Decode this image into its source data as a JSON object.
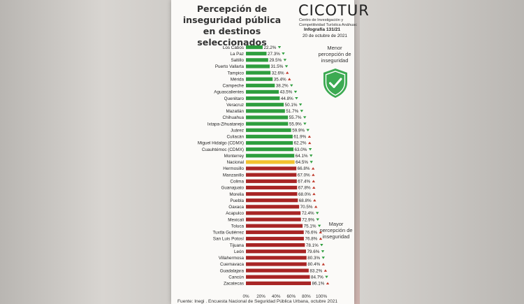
{
  "title": "Percepción de inseguridad pública en destinos seleccionados",
  "brand": {
    "name": "CICOTUR",
    "subtitle": "Centro de Investigación y Competitividad Turística Anáhuac"
  },
  "info": {
    "id": "Infografía 131/21",
    "date": "20 de octubre de 2021"
  },
  "notes": {
    "low": "Menor percepción de inseguridad",
    "high": "Mayor percepción de inseguridad"
  },
  "source": "Fuente: Inegi . Encuesta Nacional de Seguridad Pública Urbana, octubre 2021",
  "colors": {
    "green": "#2e9e3e",
    "yellow": "#f2c12e",
    "red": "#a82525",
    "shield": "#3caa52",
    "up_marker": "#c0392b",
    "down_marker": "#2e9e3e"
  },
  "chart_data": {
    "type": "bar",
    "orientation": "horizontal",
    "xlim": [
      0,
      100
    ],
    "x_ticks": [
      "0%",
      "20%",
      "40%",
      "60%",
      "80%",
      "100%"
    ],
    "categories": [
      "Los Cabos",
      "La Paz",
      "Saltillo",
      "Puerto Vallarta",
      "Tampico",
      "Mérida",
      "Campeche",
      "Aguascalientes",
      "Querétaro",
      "Veracruz",
      "Mazatlán",
      "Chihuahua",
      "Ixtapa-Zihuatanejo",
      "Juárez",
      "Culiacán",
      "Miguel Hidalgo (CDMX)",
      "Cuauhtémoc (CDMX)",
      "Monterrey",
      "Nacional",
      "Hermosillo",
      "Manzanillo",
      "Colima",
      "Guanajuato",
      "Morelia",
      "Puebla",
      "Oaxaca",
      "Acapulco",
      "Mexicali",
      "Toluca",
      "Tuxtla Gutiérrez",
      "San Luis Potosí",
      "Tijuana",
      "León",
      "Villahermosa",
      "Cuernavaca",
      "Guadalajara",
      "Cancún",
      "Zacatecas"
    ],
    "values": [
      22.2,
      27.3,
      29.5,
      31.5,
      32.6,
      35.4,
      38.2,
      43.5,
      44.8,
      50.1,
      51.7,
      55.7,
      55.9,
      59.9,
      61.9,
      62.2,
      63.0,
      64.1,
      64.5,
      66.8,
      67.0,
      67.4,
      67.8,
      68.0,
      68.8,
      70.5,
      72.4,
      72.9,
      75.1,
      76.6,
      76.8,
      78.1,
      79.6,
      80.3,
      80.4,
      83.2,
      84.7,
      86.1
    ],
    "value_labels": [
      "22.2%",
      "27.3%",
      "29.5%",
      "31.5%",
      "32.6%",
      "35.4%",
      "38.2%",
      "43.5%",
      "44.8%",
      "50.1%",
      "51.7%",
      "55.7%",
      "55.9%",
      "59.9%",
      "61.9%",
      "62.2%",
      "63.0%",
      "64.1%",
      "64.5%",
      "66.8%",
      "67.0%",
      "67.4%",
      "67.8%",
      "68.0%",
      "68.8%",
      "70.5%",
      "72.4%",
      "72.9%",
      "75.1%",
      "76.6%",
      "76.8%",
      "78.1%",
      "79.6%",
      "80.3%",
      "80.4%",
      "83.2%",
      "84.7%",
      "86.1%"
    ],
    "groups": [
      "green",
      "green",
      "green",
      "green",
      "green",
      "green",
      "green",
      "green",
      "green",
      "green",
      "green",
      "green",
      "green",
      "green",
      "green",
      "green",
      "green",
      "green",
      "yellow",
      "red",
      "red",
      "red",
      "red",
      "red",
      "red",
      "red",
      "red",
      "red",
      "red",
      "red",
      "red",
      "red",
      "red",
      "red",
      "red",
      "red",
      "red",
      "red"
    ],
    "trend": [
      "down",
      "down",
      "down",
      "down",
      "up",
      "up",
      "down",
      "down",
      "down",
      "down",
      "down",
      "down",
      "down",
      "down",
      "up",
      "up",
      "down",
      "down",
      "down",
      "up",
      "up",
      "up",
      "up",
      "up",
      "up",
      "up",
      "down",
      "down",
      "down",
      "up",
      "up",
      "down",
      "down",
      "down",
      "up",
      "up",
      "down",
      "up"
    ]
  }
}
